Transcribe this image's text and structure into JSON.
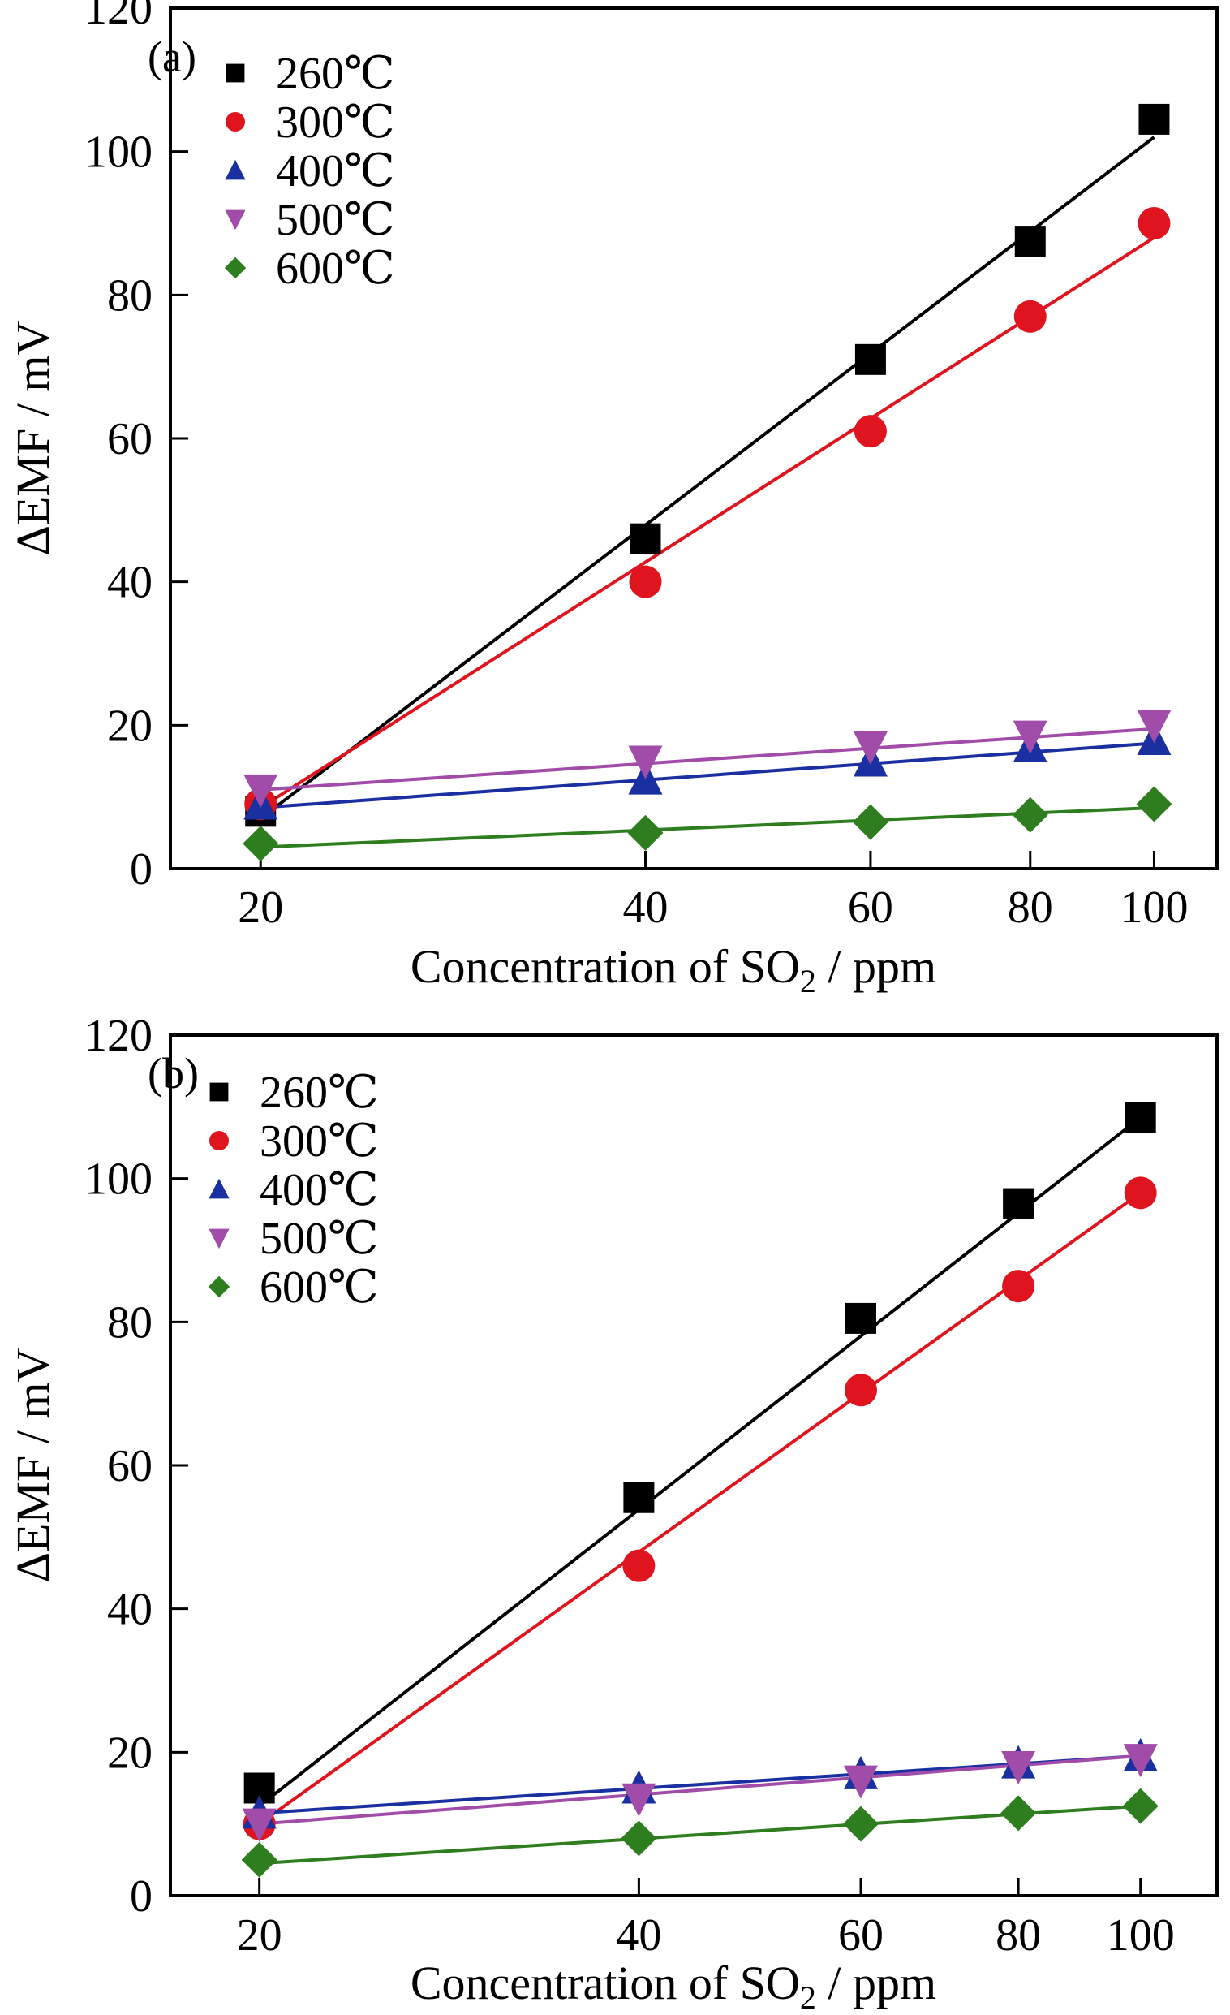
{
  "figure": {
    "panels": [
      "a",
      "b"
    ]
  },
  "chart_data": [
    {
      "type": "scatter",
      "panel_label": "(a)",
      "xlabel": "Concentration of SO",
      "xlabel_subscript": "2",
      "xlabel_suffix": " / ppm",
      "ylabel": "ΔEMF / mV",
      "x_scale": "log",
      "xlim": [
        17,
        112
      ],
      "ylim": [
        0,
        120
      ],
      "x_ticks": [
        20,
        40,
        60,
        80,
        100
      ],
      "y_ticks": [
        0,
        20,
        40,
        60,
        80,
        100,
        120
      ],
      "fit_lines": true,
      "legend_position": "top-left",
      "series": [
        {
          "name": "260℃",
          "marker": "square",
          "color": "#000000",
          "x": [
            20,
            40,
            60,
            80,
            100
          ],
          "y": [
            8,
            46,
            71,
            87.5,
            104.5
          ],
          "fit": [
            [
              20,
              7
            ],
            [
              100,
              102
            ]
          ]
        },
        {
          "name": "300℃",
          "marker": "circle",
          "color": "#e0141e",
          "x": [
            20,
            40,
            60,
            80,
            100
          ],
          "y": [
            9,
            40,
            61,
            77,
            90
          ],
          "fit": [
            [
              20,
              8.5
            ],
            [
              100,
              88
            ]
          ]
        },
        {
          "name": "400℃",
          "marker": "triangle-up",
          "color": "#1a2fa0",
          "x": [
            20,
            40,
            60,
            80,
            100
          ],
          "y": [
            9,
            12.5,
            15,
            17,
            18
          ],
          "fit": [
            [
              20,
              8.5
            ],
            [
              100,
              17.5
            ]
          ]
        },
        {
          "name": "500℃",
          "marker": "triangle-down",
          "color": "#a04ca8",
          "x": [
            20,
            40,
            60,
            80,
            100
          ],
          "y": [
            11,
            15,
            17,
            18.5,
            20
          ],
          "fit": [
            [
              20,
              11
            ],
            [
              100,
              19.5
            ]
          ]
        },
        {
          "name": "600℃",
          "marker": "diamond",
          "color": "#2e7d1e",
          "x": [
            20,
            40,
            60,
            80,
            100
          ],
          "y": [
            3.5,
            5,
            6.5,
            7.5,
            9
          ],
          "fit": [
            [
              20,
              3
            ],
            [
              100,
              8.5
            ]
          ]
        }
      ]
    },
    {
      "type": "scatter",
      "panel_label": "(b)",
      "xlabel": "Concentration of SO",
      "xlabel_subscript": "2",
      "xlabel_suffix": " / ppm",
      "ylabel": "ΔEMF / mV",
      "x_scale": "log",
      "xlim": [
        17,
        115
      ],
      "ylim": [
        0,
        120
      ],
      "x_ticks": [
        20,
        40,
        60,
        80,
        100
      ],
      "y_ticks": [
        0,
        20,
        40,
        60,
        80,
        100,
        120
      ],
      "fit_lines": true,
      "legend_position": "top-left",
      "series": [
        {
          "name": "260℃",
          "marker": "square",
          "color": "#000000",
          "x": [
            20,
            40,
            60,
            80,
            100
          ],
          "y": [
            15,
            55.5,
            80.5,
            96.5,
            108.5
          ],
          "fit": [
            [
              20,
              12.5
            ],
            [
              100,
              108.5
            ]
          ]
        },
        {
          "name": "300℃",
          "marker": "circle",
          "color": "#e0141e",
          "x": [
            20,
            40,
            60,
            80,
            100
          ],
          "y": [
            10,
            46,
            70.5,
            85,
            98
          ],
          "fit": [
            [
              20,
              10
            ],
            [
              100,
              98
            ]
          ]
        },
        {
          "name": "400℃",
          "marker": "triangle-up",
          "color": "#1a2fa0",
          "x": [
            20,
            40,
            60,
            80,
            100
          ],
          "y": [
            11.5,
            15,
            17,
            18.5,
            19.5
          ],
          "fit": [
            [
              20,
              11.5
            ],
            [
              100,
              19.5
            ]
          ]
        },
        {
          "name": "500℃",
          "marker": "triangle-down",
          "color": "#a04ca8",
          "x": [
            20,
            40,
            60,
            80,
            100
          ],
          "y": [
            10,
            13.5,
            16,
            18,
            19
          ],
          "fit": [
            [
              20,
              10
            ],
            [
              100,
              19.5
            ]
          ]
        },
        {
          "name": "600℃",
          "marker": "diamond",
          "color": "#2e7d1e",
          "x": [
            20,
            40,
            60,
            80,
            100
          ],
          "y": [
            5,
            8,
            10,
            11.5,
            12.5
          ],
          "fit": [
            [
              20,
              4.5
            ],
            [
              100,
              12.5
            ]
          ]
        }
      ]
    }
  ]
}
